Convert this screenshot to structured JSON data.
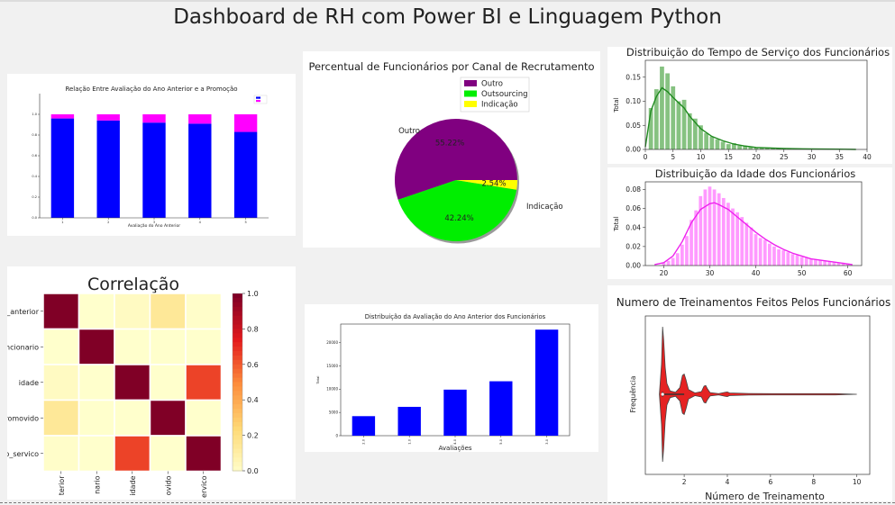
{
  "dashboard": {
    "title": "Dashboard de RH com Power BI e Linguagem Python"
  },
  "chart_data": [
    {
      "id": "promocao",
      "type": "bar",
      "stacked": true,
      "title": "Relação Entre Avaliação do Ano Anterior e a Promoção",
      "xlabel": "Avaliação do Ano Anterior",
      "ylabel": "",
      "categories": [
        "1",
        "2",
        "3",
        "4",
        "5"
      ],
      "series": [
        {
          "values": [
            0.96,
            0.94,
            0.92,
            0.91,
            0.83
          ],
          "color": "#0000ff"
        },
        {
          "values": [
            0.04,
            0.06,
            0.08,
            0.09,
            0.17
          ],
          "color": "#ff00ff"
        }
      ],
      "ylim": [
        0,
        1.2
      ],
      "yticks": [
        0,
        0.2,
        0.4,
        0.6,
        0.8,
        1.0
      ],
      "legend": "top-right"
    },
    {
      "id": "canal",
      "type": "pie",
      "title": "Percentual de Funcionários por Canal de Recrutamento",
      "slices": [
        {
          "label": "Outro",
          "pct_label": "55.22%",
          "value": 55.22,
          "color": "#800080"
        },
        {
          "label": "Outsourcing",
          "pct_label": "42.24%",
          "value": 42.24,
          "color": "#00ee00"
        },
        {
          "label": "Indicação",
          "pct_label": "2.54%",
          "value": 2.54,
          "color": "#ffff00"
        }
      ],
      "legend": "top-right"
    },
    {
      "id": "tempo",
      "type": "bar",
      "subtype": "histogram-kde",
      "title": "Distribuição do Tempo de Serviço dos Funcionários",
      "ylabel": "Total",
      "xlim": [
        0,
        40
      ],
      "ylim": [
        0,
        0.185
      ],
      "xticks": [
        0,
        5,
        10,
        15,
        20,
        25,
        30,
        35,
        40
      ],
      "yticks": [
        0.0,
        0.05,
        0.1,
        0.15
      ],
      "ytick_labels": [
        "0.00",
        "0.05",
        "0.10",
        "0.15"
      ],
      "bin_width": 1,
      "x": [
        1,
        2,
        3,
        4,
        5,
        6,
        7,
        8,
        9,
        10,
        11,
        12,
        13,
        14,
        15,
        16,
        17,
        18,
        19,
        20,
        21,
        22,
        23,
        24,
        25,
        26,
        27,
        28,
        29,
        30,
        31,
        32,
        33,
        34,
        35,
        36,
        37
      ],
      "values": [
        0.086,
        0.125,
        0.172,
        0.158,
        0.131,
        0.1,
        0.103,
        0.075,
        0.064,
        0.05,
        0.034,
        0.027,
        0.021,
        0.016,
        0.011,
        0.013,
        0.008,
        0.007,
        0.005,
        0.004,
        0.003,
        0.003,
        0.002,
        0.002,
        0.002,
        0.001,
        0.001,
        0.001,
        0.001,
        0.001,
        0.001,
        0.0,
        0.001,
        0.0,
        0.0,
        0.0,
        0.001
      ],
      "kde_x": [
        0,
        1,
        2,
        3,
        4,
        5,
        6,
        7,
        8,
        9,
        10,
        12,
        14,
        16,
        18,
        20,
        25,
        30,
        35,
        38
      ],
      "kde_y": [
        0.005,
        0.08,
        0.11,
        0.128,
        0.12,
        0.108,
        0.097,
        0.086,
        0.069,
        0.056,
        0.043,
        0.027,
        0.018,
        0.011,
        0.007,
        0.004,
        0.002,
        0.001,
        0.0005,
        0.0
      ],
      "bar_color": "#86c281",
      "line_color": "#1f8a1f"
    },
    {
      "id": "idade",
      "type": "bar",
      "subtype": "histogram-kde",
      "title": "Distribuição da Idade dos Funcionários",
      "ylabel": "Total",
      "xlim": [
        16,
        63
      ],
      "ylim": [
        0,
        0.088
      ],
      "xticks": [
        20,
        30,
        40,
        50,
        60
      ],
      "yticks": [
        0.0,
        0.02,
        0.04,
        0.06,
        0.08
      ],
      "ytick_labels": [
        "0.00",
        "0.02",
        "0.04",
        "0.06",
        "0.08"
      ],
      "bin_width": 1,
      "x": [
        20,
        21,
        22,
        23,
        24,
        25,
        26,
        27,
        28,
        29,
        30,
        31,
        32,
        33,
        34,
        35,
        36,
        37,
        38,
        39,
        40,
        41,
        42,
        43,
        44,
        45,
        46,
        47,
        48,
        49,
        50,
        51,
        52,
        53,
        54,
        55,
        56,
        57,
        58,
        59,
        60
      ],
      "values": [
        0.003,
        0.005,
        0.008,
        0.013,
        0.022,
        0.031,
        0.048,
        0.058,
        0.073,
        0.08,
        0.083,
        0.08,
        0.076,
        0.071,
        0.066,
        0.06,
        0.056,
        0.051,
        0.045,
        0.04,
        0.033,
        0.029,
        0.027,
        0.023,
        0.02,
        0.017,
        0.016,
        0.014,
        0.012,
        0.011,
        0.009,
        0.008,
        0.007,
        0.006,
        0.006,
        0.005,
        0.004,
        0.004,
        0.003,
        0.003,
        0.002
      ],
      "kde_x": [
        18,
        20,
        22,
        24,
        26,
        28,
        30,
        31,
        32,
        34,
        36,
        38,
        40,
        42,
        44,
        46,
        48,
        50,
        52,
        55,
        58,
        61
      ],
      "kde_y": [
        0.001,
        0.003,
        0.01,
        0.025,
        0.045,
        0.059,
        0.065,
        0.066,
        0.064,
        0.059,
        0.051,
        0.043,
        0.035,
        0.028,
        0.022,
        0.017,
        0.013,
        0.01,
        0.007,
        0.005,
        0.003,
        0.001
      ],
      "bar_color": "#ff99ff",
      "line_color": "#ee22ee"
    },
    {
      "id": "correlacao",
      "type": "heatmap",
      "title": "Correlação",
      "row_labels": [
        "_anterior",
        "ncionario",
        "idade",
        "romovido",
        "o_servico"
      ],
      "col_labels": [
        "terior",
        "nario",
        "idade",
        "ovido",
        "ervico"
      ],
      "matrix": [
        [
          1.0,
          0.0,
          0.03,
          0.15,
          0.01
        ],
        [
          0.0,
          1.0,
          0.0,
          0.0,
          0.0
        ],
        [
          0.03,
          0.0,
          1.0,
          0.0,
          0.66
        ],
        [
          0.15,
          0.0,
          0.0,
          1.0,
          0.0
        ],
        [
          0.01,
          0.0,
          0.66,
          0.0,
          1.0
        ]
      ],
      "colorbar_ticks": [
        "0.0",
        "0.2",
        "0.4",
        "0.6",
        "0.8",
        "1.0"
      ],
      "vmin": 0,
      "vmax": 1
    },
    {
      "id": "avaliacao",
      "type": "bar",
      "title": "Distribuição da Avaliação do Ano Anterior dos Funcionários",
      "xlabel": "Avaliações",
      "ylabel": "Total",
      "categories": [
        "2.0",
        "1.0",
        "4.0",
        "5.0",
        "3.0"
      ],
      "values": [
        4200,
        6200,
        9900,
        11700,
        22800
      ],
      "ylim": [
        0,
        24000
      ],
      "yticks": [
        0,
        5000,
        10000,
        15000,
        20000
      ],
      "color": "#0000ff"
    },
    {
      "id": "treinamentos",
      "type": "violin",
      "title": "Numero de Treinamentos Feitos Pelos Funcionários",
      "xlabel": "Número de Treinamento",
      "ylabel": "Frequência",
      "xlim": [
        0.2,
        10.6
      ],
      "xticks": [
        2,
        4,
        6,
        8,
        10
      ],
      "violin_x": [
        0.85,
        0.95,
        1.0,
        1.05,
        1.12,
        1.2,
        1.35,
        1.6,
        1.8,
        1.92,
        2.0,
        2.08,
        2.2,
        2.5,
        2.8,
        2.92,
        3.0,
        3.08,
        3.2,
        3.6,
        3.9,
        4.0,
        4.1,
        5.0,
        6.0,
        7.0,
        8.0,
        9.0,
        10.0
      ],
      "violin_w": [
        0.0,
        0.45,
        1.0,
        0.8,
        0.4,
        0.16,
        0.05,
        0.03,
        0.1,
        0.28,
        0.3,
        0.22,
        0.07,
        0.02,
        0.04,
        0.12,
        0.13,
        0.08,
        0.025,
        0.01,
        0.03,
        0.035,
        0.02,
        0.012,
        0.01,
        0.01,
        0.01,
        0.01,
        0.0
      ],
      "box": {
        "q1": 1,
        "median": 1,
        "q3": 1,
        "whisker_low": 1,
        "whisker_high": 2
      },
      "color": "#e52222"
    }
  ]
}
